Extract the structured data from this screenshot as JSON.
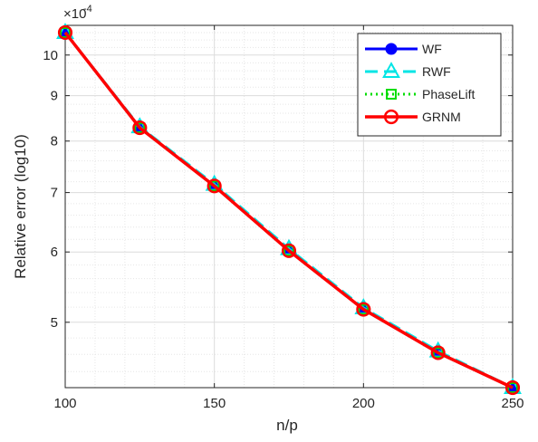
{
  "chart_data": {
    "type": "line",
    "title": "",
    "xlabel": "n/p",
    "ylabel": "Relative error (log10)",
    "y_scale": "log",
    "y_exponent_label": "×10",
    "y_exponent_power": "-4",
    "xlim": [
      100,
      250
    ],
    "ylim": [
      4.22,
      10.8
    ],
    "x": [
      100,
      125,
      150,
      175,
      200,
      225,
      250
    ],
    "x_ticks": [
      "100",
      "150",
      "200",
      "250"
    ],
    "y_ticks": [
      "5",
      "6",
      "7",
      "8",
      "9",
      "10"
    ],
    "grid": true,
    "legend_position": "top-right",
    "series": [
      {
        "name": "WF",
        "color": "#0000ff",
        "line": "solid",
        "marker": "filled-circle",
        "values": [
          10.6,
          8.28,
          7.12,
          6.02,
          5.17,
          4.62,
          4.22
        ]
      },
      {
        "name": "RWF",
        "color": "#00e5e5",
        "line": "dashed",
        "marker": "triangle",
        "values": [
          10.6,
          8.3,
          7.15,
          6.05,
          5.19,
          4.64,
          4.22
        ]
      },
      {
        "name": "PhaseLift",
        "color": "#00dd00",
        "line": "dotted",
        "marker": "square",
        "values": [
          10.6,
          8.28,
          7.12,
          6.02,
          5.17,
          4.62,
          4.22
        ]
      },
      {
        "name": "GRNM",
        "color": "#ff0000",
        "line": "solid",
        "marker": "open-circle",
        "values": [
          10.6,
          8.28,
          7.12,
          6.02,
          5.17,
          4.62,
          4.22
        ]
      }
    ]
  }
}
